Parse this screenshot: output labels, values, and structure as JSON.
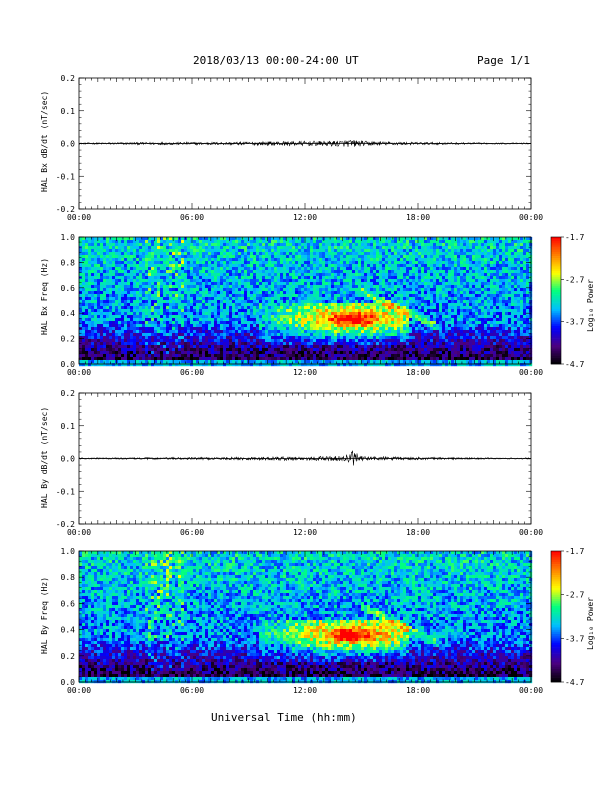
{
  "header": {
    "title": "2018/03/13  00:00-24:00 UT",
    "page": "Page 1/1"
  },
  "xlabel": "Universal Time (hh:mm)",
  "colors": {
    "trace": "#000000",
    "colorbar": [
      "#000000",
      "#4b0082",
      "#0000ff",
      "#00bfff",
      "#00ff7f",
      "#ffff00",
      "#ff7f00",
      "#ff0000"
    ]
  },
  "chart_data": [
    {
      "type": "line",
      "ylabel": "HAL Bx dB/dt (nT/sec)",
      "xlim": [
        0,
        24
      ],
      "ylim": [
        -0.2,
        0.2
      ],
      "xticks": [
        "00:00",
        "06:00",
        "12:00",
        "18:00",
        "00:00"
      ],
      "yticks": [
        "0.2",
        "0.1",
        "0.0",
        "-0.1",
        "-0.2"
      ],
      "series": [
        {
          "x": [
            0,
            4,
            8,
            10,
            11,
            12,
            13,
            14,
            14.5,
            15,
            16,
            17,
            18,
            20,
            22,
            24
          ],
          "amplitude": [
            0.002,
            0.004,
            0.004,
            0.006,
            0.007,
            0.007,
            0.008,
            0.009,
            0.012,
            0.008,
            0.006,
            0.005,
            0.004,
            0.003,
            0.002,
            0.002
          ]
        }
      ]
    },
    {
      "type": "heatmap",
      "ylabel": "HAL Bx Freq (Hz)",
      "xlim": [
        0,
        24
      ],
      "ylim": [
        0,
        1.0
      ],
      "xticks": [
        "00:00",
        "06:00",
        "12:00",
        "18:00",
        "00:00"
      ],
      "yticks": [
        "1.0",
        "0.8",
        "0.6",
        "0.4",
        "0.2",
        "0.0"
      ],
      "colorbar": {
        "label": "Log₁₀ Power",
        "ticks": [
          "-1.7",
          "-2.7",
          "-3.7",
          "-4.7"
        ],
        "range": [
          -4.7,
          -1.7
        ]
      }
    },
    {
      "type": "line",
      "ylabel": "HAL By dB/dt (nT/sec)",
      "xlim": [
        0,
        24
      ],
      "ylim": [
        -0.2,
        0.2
      ],
      "xticks": [
        "00:00",
        "06:00",
        "12:00",
        "18:00",
        "00:00"
      ],
      "yticks": [
        "0.2",
        "0.1",
        "0.0",
        "-0.1",
        "-0.2"
      ],
      "series": [
        {
          "x": [
            0,
            4,
            8,
            10,
            11,
            12,
            13,
            14,
            14.5,
            15,
            16,
            17,
            18,
            20,
            22,
            24
          ],
          "amplitude": [
            0.002,
            0.003,
            0.004,
            0.005,
            0.006,
            0.006,
            0.007,
            0.008,
            0.025,
            0.007,
            0.006,
            0.005,
            0.004,
            0.003,
            0.002,
            0.002
          ]
        }
      ]
    },
    {
      "type": "heatmap",
      "ylabel": "HAL By Freq (Hz)",
      "xlim": [
        0,
        24
      ],
      "ylim": [
        0,
        1.0
      ],
      "xticks": [
        "00:00",
        "06:00",
        "12:00",
        "18:00",
        "00:00"
      ],
      "yticks": [
        "1.0",
        "0.8",
        "0.6",
        "0.4",
        "0.2",
        "0.0"
      ],
      "colorbar": {
        "label": "Log₁₀ Power",
        "ticks": [
          "-1.7",
          "-2.7",
          "-3.7",
          "-4.7"
        ],
        "range": [
          -4.7,
          -1.7
        ]
      }
    }
  ]
}
